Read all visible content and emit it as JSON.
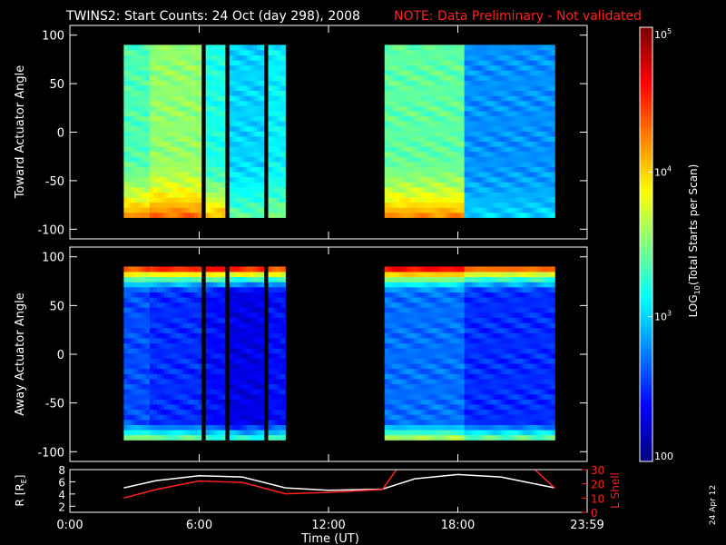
{
  "header": {
    "title": "TWINS2: Start Counts: 24 Oct (day 298), 2008",
    "note": "NOTE: Data Preliminary - Not validated"
  },
  "side_stamp": "24 Apr 12",
  "colors": {
    "background": "#000000",
    "axes": "#ffffff",
    "note": "#ff2020",
    "r_line": "#ffffff",
    "lshell_line": "#ff2020"
  },
  "chart_data": [
    {
      "type": "heatmap",
      "name": "toward",
      "ylabel": "Toward Actuator Angle",
      "ylim": [
        -110,
        110
      ],
      "yticks": [
        100,
        50,
        0,
        -50,
        -100
      ],
      "xlim": [
        0,
        24
      ],
      "data_y_range": [
        -88,
        90
      ],
      "segments": [
        {
          "start": 2.5,
          "end": 3.7,
          "level": 3.35,
          "low_edge": 4.2
        },
        {
          "start": 3.7,
          "end": 6.1,
          "level": 3.55,
          "low_edge": 4.3
        },
        {
          "start": 6.3,
          "end": 7.2,
          "level": 3.2,
          "low_edge": 4.1
        },
        {
          "start": 7.4,
          "end": 9.0,
          "level": 3.0,
          "low_edge": 3.4
        },
        {
          "start": 9.2,
          "end": 10.0,
          "level": 3.1,
          "low_edge": 3.5
        },
        {
          "start": 14.6,
          "end": 18.3,
          "level": 3.4,
          "low_edge": 4.2
        },
        {
          "start": 18.3,
          "end": 22.5,
          "level": 2.8,
          "low_edge": 3.0
        }
      ]
    },
    {
      "type": "heatmap",
      "name": "away",
      "ylabel": "Away Actuator Angle",
      "ylim": [
        -110,
        110
      ],
      "yticks": [
        100,
        50,
        0,
        -50,
        -100
      ],
      "xlim": [
        0,
        24
      ],
      "data_y_range": [
        -88,
        90
      ],
      "segments": [
        {
          "start": 2.5,
          "end": 3.7,
          "level": 2.6,
          "top_edge": 4.4
        },
        {
          "start": 3.7,
          "end": 6.1,
          "level": 2.5,
          "top_edge": 4.5
        },
        {
          "start": 6.3,
          "end": 7.2,
          "level": 2.4,
          "top_edge": 4.6
        },
        {
          "start": 7.4,
          "end": 9.0,
          "level": 2.3,
          "top_edge": 4.5
        },
        {
          "start": 9.2,
          "end": 10.0,
          "level": 2.4,
          "top_edge": 4.4
        },
        {
          "start": 14.6,
          "end": 18.3,
          "level": 2.7,
          "top_edge": 4.6
        },
        {
          "start": 18.3,
          "end": 22.5,
          "level": 2.5,
          "top_edge": 4.3
        }
      ]
    },
    {
      "type": "line",
      "name": "orbit",
      "ylabel_left": "R [RE]",
      "ylabel_right": "L Shell",
      "xlabel": "Time (UT)",
      "xticks": [
        "0:00",
        "6:00",
        "12:00",
        "18:00",
        "23:59"
      ],
      "xtick_values": [
        0,
        6,
        12,
        18,
        24
      ],
      "ylim_left": [
        1,
        8
      ],
      "yticks_left": [
        2,
        4,
        6,
        8
      ],
      "ylim_right": [
        0,
        30
      ],
      "yticks_right": [
        0,
        10,
        20,
        30
      ],
      "series": [
        {
          "name": "R",
          "x": [
            2.5,
            4,
            6,
            8,
            10,
            12,
            14.5,
            16,
            18,
            20,
            22.5
          ],
          "y": [
            5.0,
            6.2,
            7.0,
            6.8,
            5.0,
            4.6,
            4.8,
            6.5,
            7.2,
            6.8,
            5.0
          ]
        },
        {
          "name": "L Shell",
          "x": [
            2.5,
            4,
            6,
            8,
            10,
            12,
            14.5,
            15.2,
            21.5,
            22.5
          ],
          "y": [
            10,
            16,
            22,
            21,
            13,
            14,
            16,
            31,
            31,
            17
          ]
        }
      ]
    },
    {
      "type": "colorbar",
      "label": "LOG10(Total Starts per Scan)",
      "scale": "log",
      "range": [
        100,
        100000
      ],
      "tick_labels": [
        "10^5",
        "10^4",
        "10^3",
        "100"
      ]
    }
  ]
}
